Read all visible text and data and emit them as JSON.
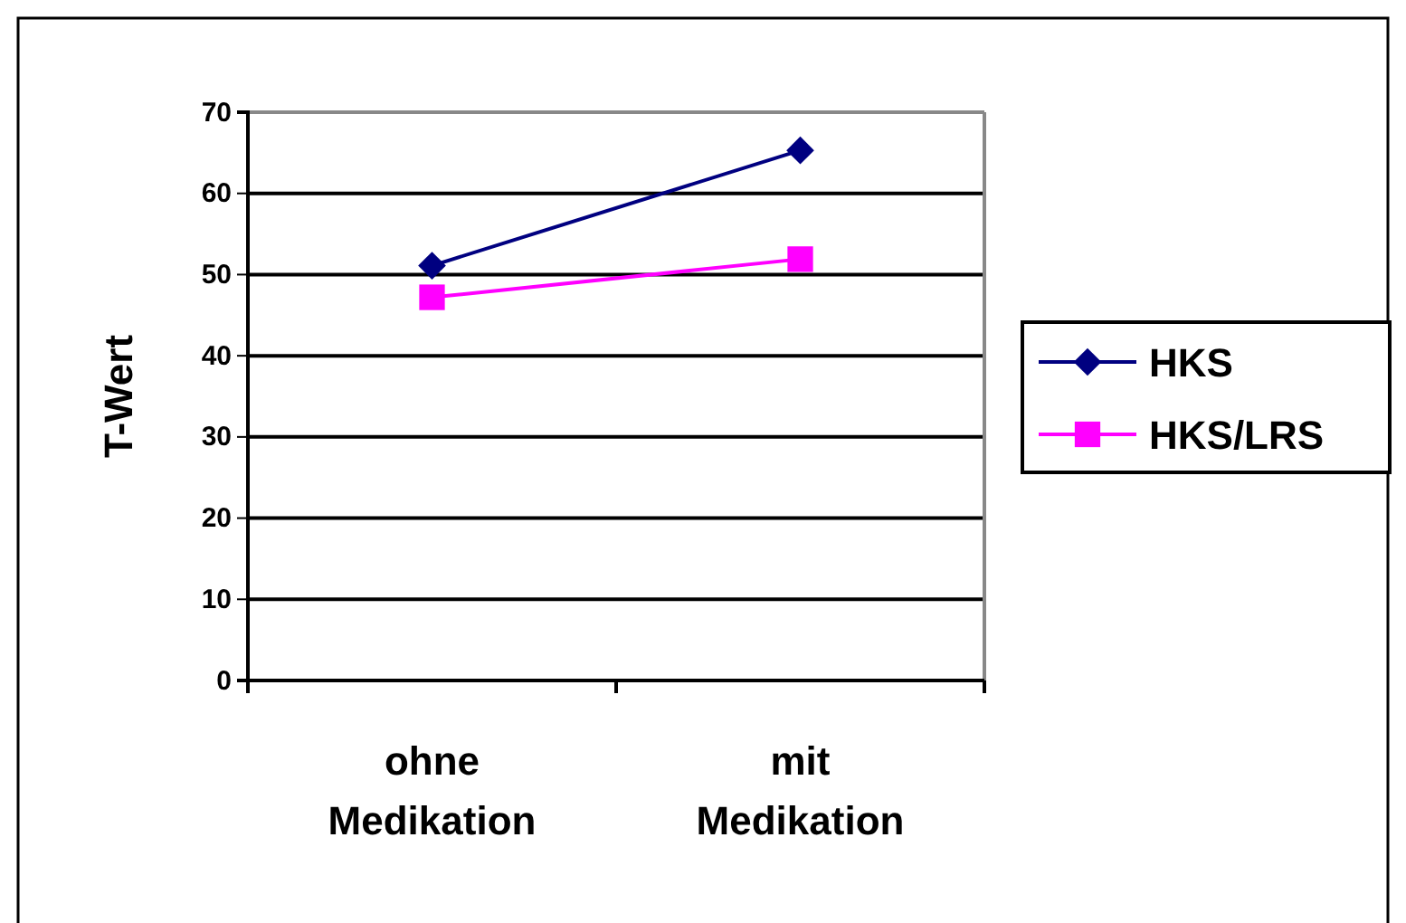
{
  "chart_data": {
    "type": "line",
    "ylabel": "T-Wert",
    "categories": [
      "ohne Medikation",
      "mit Medikation"
    ],
    "series": [
      {
        "name": "HKS",
        "color": "#000080",
        "values": [
          51.1,
          65.3
        ],
        "marker": "diamond"
      },
      {
        "name": "HKS/LRS",
        "color": "#ff00ff",
        "values": [
          47.2,
          51.9
        ],
        "marker": "square"
      }
    ],
    "ylim": [
      0,
      70
    ],
    "yticks": [
      0,
      10,
      20,
      30,
      40,
      50,
      60,
      70
    ],
    "grid": "y",
    "legend": "right",
    "line_style": "solid"
  }
}
